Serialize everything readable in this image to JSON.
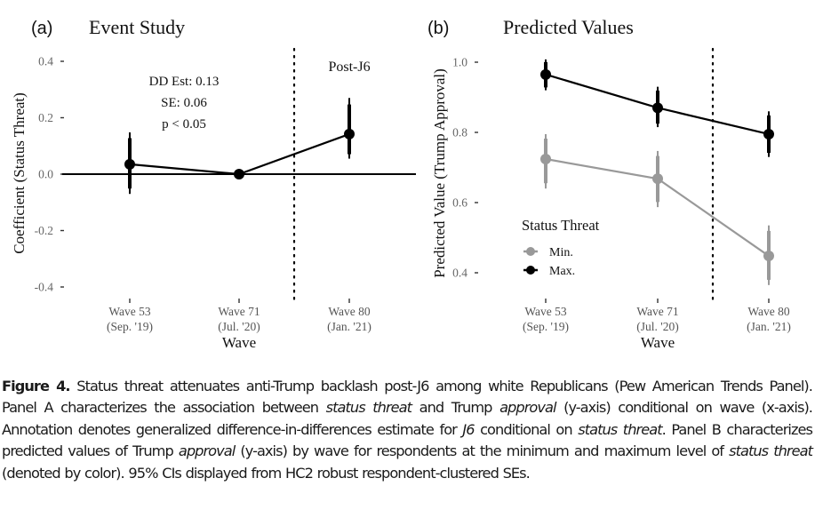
{
  "chart_data": [
    {
      "type": "line",
      "panel_label": "(a)",
      "title": "Event Study",
      "xlabel": "Wave",
      "ylabel": "Coefficient (Status Threat)",
      "categories": [
        "Wave 53\n(Sep. '19)",
        "Wave 71\n(Jul. '20)",
        "Wave 80\n(Jan. '21)"
      ],
      "category_lines": [
        [
          "Wave 53",
          "(Sep. '19)"
        ],
        [
          "Wave 71",
          "(Jul. '20)"
        ],
        [
          "Wave 80",
          "(Jan. '21)"
        ]
      ],
      "ylim": [
        -0.45,
        0.42
      ],
      "yticks": [
        0.4,
        0.2,
        0.0,
        -0.2,
        -0.4
      ],
      "ytick_labels": [
        "0.4",
        "0.2",
        "0.0",
        "-0.2",
        "-0.4"
      ],
      "grid": false,
      "reference_line_y": 0.0,
      "event_line": {
        "between": [
          "Wave 71",
          "Wave 80"
        ],
        "style": "dotted",
        "label": "Post-J6"
      },
      "annotation": [
        "DD Est: 0.13",
        "SE: 0.06",
        "p < 0.05"
      ],
      "series": [
        {
          "name": "Coefficient",
          "color": "#000000",
          "values": [
            0.035,
            0.0,
            0.142
          ],
          "ci_low": [
            -0.07,
            0.0,
            0.055
          ],
          "ci_high": [
            0.148,
            0.0,
            0.27
          ]
        }
      ]
    },
    {
      "type": "line",
      "panel_label": "(b)",
      "title": "Predicted Values",
      "xlabel": "Wave",
      "ylabel": "Predicted Value (Trump Approval)",
      "categories": [
        "Wave 53\n(Sep. '19)",
        "Wave 71\n(Jul. '20)",
        "Wave 80\n(Jan. '21)"
      ],
      "category_lines": [
        [
          "Wave 53",
          "(Sep. '19)"
        ],
        [
          "Wave 71",
          "(Jul. '20)"
        ],
        [
          "Wave 80",
          "(Jan. '21)"
        ]
      ],
      "ylim": [
        0.34,
        1.03
      ],
      "yticks": [
        1.0,
        0.8,
        0.6,
        0.4
      ],
      "ytick_labels": [
        "1.0",
        "0.8",
        "0.6",
        "0.4"
      ],
      "grid": false,
      "event_line": {
        "between": [
          "Wave 71",
          "Wave 80"
        ],
        "style": "dotted",
        "label": ""
      },
      "legend": {
        "title": "Status Threat",
        "placement": "bottom-left"
      },
      "series": [
        {
          "name": "Min.",
          "color": "#999999",
          "values": [
            0.724,
            0.668,
            0.448
          ],
          "ci_low": [
            0.64,
            0.587,
            0.365
          ],
          "ci_high": [
            0.795,
            0.747,
            0.535
          ]
        },
        {
          "name": "Max.",
          "color": "#000000",
          "values": [
            0.965,
            0.87,
            0.795
          ],
          "ci_low": [
            0.92,
            0.815,
            0.73
          ],
          "ci_high": [
            1.008,
            0.93,
            0.86
          ]
        }
      ]
    }
  ],
  "caption": {
    "label": "Figure 4.",
    "segments": [
      {
        "text": "  Status threat attenuates anti-Trump backlash post-J6 among white Republicans (Pew American Trends Panel). Panel A characterizes the association between ",
        "italic": false
      },
      {
        "text": "status threat",
        "italic": true
      },
      {
        "text": " and Trump ",
        "italic": false
      },
      {
        "text": "approval",
        "italic": true
      },
      {
        "text": " (y-axis) conditional on wave (x-axis). Annotation denotes generalized difference-in-differences estimate for ",
        "italic": false
      },
      {
        "text": "J6",
        "italic": true
      },
      {
        "text": " conditional on ",
        "italic": false
      },
      {
        "text": "status threat",
        "italic": true
      },
      {
        "text": ". Panel B characterizes predicted values of Trump ",
        "italic": false
      },
      {
        "text": "approval",
        "italic": true
      },
      {
        "text": " (y-axis) by wave for respondents at the minimum and maximum level of ",
        "italic": false
      },
      {
        "text": "status threat",
        "italic": true
      },
      {
        "text": " (denoted by color). 95% CIs displayed from HC2 robust respondent-clustered SEs.",
        "italic": false
      }
    ]
  }
}
